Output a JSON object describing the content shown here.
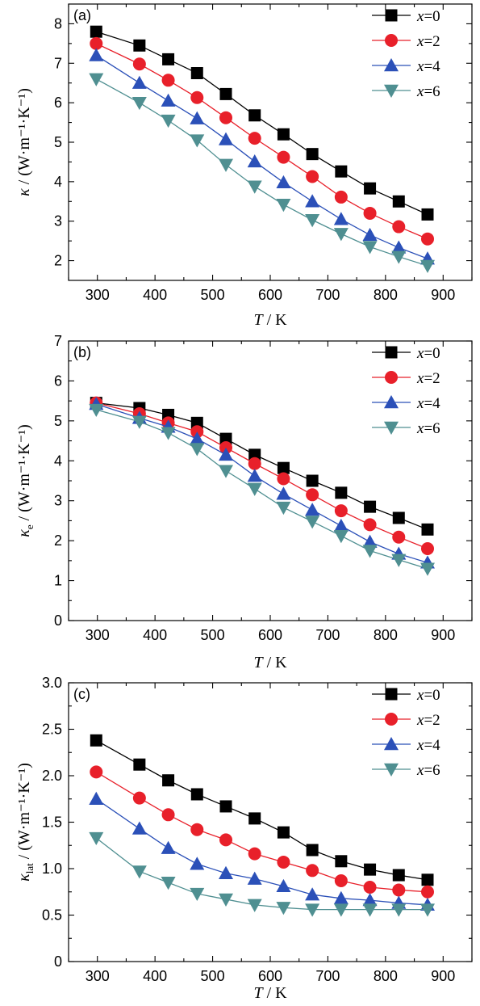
{
  "chart_data": [
    {
      "type": "line",
      "panel_label": "(a)",
      "xlabel_symbol": "T",
      "xlabel_unit": " / K",
      "ylabel_symbol": "κ",
      "ylabel_sub": "",
      "ylabel_unit": " / (W·m⁻¹·K⁻¹)",
      "xlim": [
        250,
        950
      ],
      "ylim": [
        1.5,
        8.5
      ],
      "xticks": [
        300,
        400,
        500,
        600,
        700,
        800,
        900
      ],
      "yticks": [
        2,
        3,
        4,
        5,
        6,
        7,
        8
      ],
      "yticks_minor": [
        2.5,
        3.5,
        4.5,
        5.5,
        6.5,
        7.5
      ],
      "legend_position": "top-right",
      "x": [
        298,
        373,
        423,
        473,
        523,
        573,
        623,
        673,
        723,
        773,
        823,
        873
      ],
      "series": [
        {
          "name": "x=0",
          "values": [
            7.8,
            7.45,
            7.1,
            6.75,
            6.22,
            5.68,
            5.2,
            4.7,
            4.26,
            3.83,
            3.5,
            3.17
          ]
        },
        {
          "name": "x=2",
          "values": [
            7.5,
            6.98,
            6.57,
            6.13,
            5.62,
            5.1,
            4.62,
            4.13,
            3.61,
            3.2,
            2.86,
            2.55
          ]
        },
        {
          "name": "x=4",
          "values": [
            7.2,
            6.5,
            6.05,
            5.6,
            5.07,
            4.51,
            3.98,
            3.5,
            3.05,
            2.65,
            2.33,
            2.05
          ]
        },
        {
          "name": "x=6",
          "values": [
            6.6,
            6.0,
            5.55,
            5.05,
            4.43,
            3.88,
            3.42,
            3.03,
            2.68,
            2.35,
            2.1,
            1.87
          ]
        }
      ]
    },
    {
      "type": "line",
      "panel_label": "(b)",
      "xlabel_symbol": "T",
      "xlabel_unit": " / K",
      "ylabel_symbol": "κ",
      "ylabel_sub": "e",
      "ylabel_unit": " / (W·m⁻¹·K⁻¹)",
      "xlim": [
        250,
        950
      ],
      "ylim": [
        0,
        7
      ],
      "xticks": [
        300,
        400,
        500,
        600,
        700,
        800,
        900
      ],
      "yticks": [
        0,
        1,
        2,
        3,
        4,
        5,
        6,
        7
      ],
      "yticks_minor": [
        0.5,
        1.5,
        2.5,
        3.5,
        4.5,
        5.5,
        6.5
      ],
      "legend_position": "top-right",
      "x": [
        298,
        373,
        423,
        473,
        523,
        573,
        623,
        673,
        723,
        773,
        823,
        873
      ],
      "series": [
        {
          "name": "x=0",
          "values": [
            5.45,
            5.32,
            5.15,
            4.95,
            4.55,
            4.15,
            3.82,
            3.5,
            3.2,
            2.85,
            2.57,
            2.28
          ]
        },
        {
          "name": "x=2",
          "values": [
            5.45,
            5.18,
            4.95,
            4.73,
            4.33,
            3.93,
            3.55,
            3.15,
            2.75,
            2.4,
            2.09,
            1.8
          ]
        },
        {
          "name": "x=4",
          "values": [
            5.42,
            5.07,
            4.85,
            4.55,
            4.15,
            3.62,
            3.17,
            2.77,
            2.37,
            1.97,
            1.67,
            1.45
          ]
        },
        {
          "name": "x=6",
          "values": [
            5.28,
            4.98,
            4.7,
            4.3,
            3.75,
            3.3,
            2.83,
            2.48,
            2.12,
            1.75,
            1.52,
            1.3
          ]
        }
      ]
    },
    {
      "type": "line",
      "panel_label": "(c)",
      "xlabel_symbol": "T",
      "xlabel_unit": " / K",
      "ylabel_symbol": "κ",
      "ylabel_sub": "lat",
      "ylabel_unit": " / (W·m⁻¹·K⁻¹)",
      "xlim": [
        250,
        950
      ],
      "ylim": [
        0,
        3.0
      ],
      "xticks": [
        300,
        400,
        500,
        600,
        700,
        800,
        900
      ],
      "yticks": [
        0,
        0.5,
        1.0,
        1.5,
        2.0,
        2.5,
        3.0
      ],
      "yticks_labels": [
        "0",
        "0.5",
        "1.0",
        "1.5",
        "2.0",
        "2.5",
        "3.0"
      ],
      "yticks_minor": [
        0.25,
        0.75,
        1.25,
        1.75,
        2.25,
        2.75
      ],
      "legend_position": "top-right",
      "x": [
        298,
        373,
        423,
        473,
        523,
        573,
        623,
        673,
        723,
        773,
        823,
        873
      ],
      "series": [
        {
          "name": "x=0",
          "values": [
            2.38,
            2.12,
            1.95,
            1.8,
            1.67,
            1.54,
            1.39,
            1.2,
            1.08,
            0.99,
            0.93,
            0.88
          ]
        },
        {
          "name": "x=2",
          "values": [
            2.04,
            1.76,
            1.58,
            1.42,
            1.31,
            1.16,
            1.07,
            0.98,
            0.87,
            0.8,
            0.77,
            0.75
          ]
        },
        {
          "name": "x=4",
          "values": [
            1.75,
            1.43,
            1.22,
            1.05,
            0.95,
            0.89,
            0.81,
            0.72,
            0.68,
            0.66,
            0.63,
            0.61
          ]
        },
        {
          "name": "x=6",
          "values": [
            1.33,
            0.97,
            0.85,
            0.73,
            0.67,
            0.61,
            0.58,
            0.56,
            0.56,
            0.56,
            0.56,
            0.56
          ]
        }
      ]
    }
  ],
  "style": {
    "series_colors": [
      "#000000",
      "#e8202a",
      "#2b50b8",
      "#4f8f91"
    ],
    "series_markers": [
      "square",
      "circle",
      "triangle-up",
      "triangle-down"
    ]
  }
}
